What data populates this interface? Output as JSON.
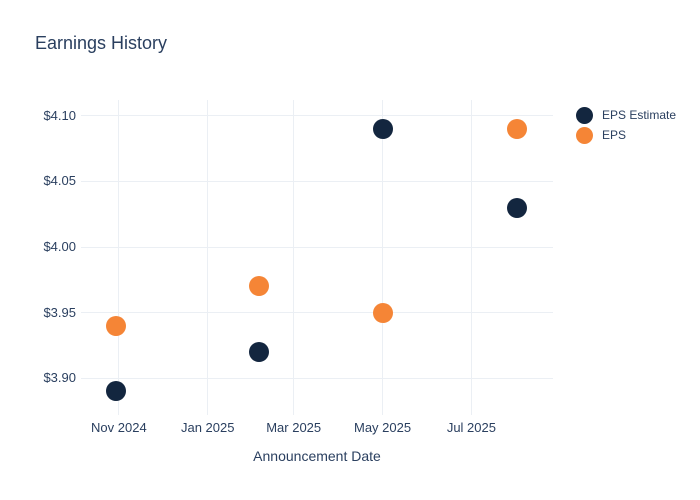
{
  "chart_data": {
    "type": "scatter",
    "title": "Earnings History",
    "xlabel": "Announcement Date",
    "ylabel": "",
    "grid": true,
    "legend_position": "right",
    "marker_size_px": 20,
    "x_axis": {
      "tick_labels": [
        "Nov 2024",
        "Jan 2025",
        "Mar 2025",
        "May 2025",
        "Jul 2025"
      ],
      "tick_dates": [
        "2024-11-01",
        "2025-01-01",
        "2025-03-01",
        "2025-05-01",
        "2025-07-01"
      ],
      "range": [
        "2024-10-06",
        "2025-08-26"
      ]
    },
    "y_axis": {
      "tick_labels": [
        "$4.10",
        "$4.05",
        "$4.00",
        "$3.95",
        "$3.90"
      ],
      "tick_values": [
        4.1,
        4.05,
        4.0,
        3.95,
        3.9
      ],
      "range": [
        3.872,
        4.112
      ]
    },
    "series": [
      {
        "name": "EPS Estimate",
        "color": "#13263F",
        "points": [
          {
            "date": "2024-10-30",
            "value": 3.89
          },
          {
            "date": "2025-02-05",
            "value": 3.92
          },
          {
            "date": "2025-05-01",
            "value": 4.09
          },
          {
            "date": "2025-08-01",
            "value": 4.03
          }
        ]
      },
      {
        "name": "EPS",
        "color": "#F58536",
        "points": [
          {
            "date": "2024-10-30",
            "value": 3.94
          },
          {
            "date": "2025-02-05",
            "value": 3.97
          },
          {
            "date": "2025-05-01",
            "value": 3.95
          },
          {
            "date": "2025-08-01",
            "value": 4.09
          }
        ]
      }
    ],
    "colors": {
      "text": "#2A3F5F",
      "grid": "#EBEFF4",
      "background": "#FFFFFF"
    }
  }
}
